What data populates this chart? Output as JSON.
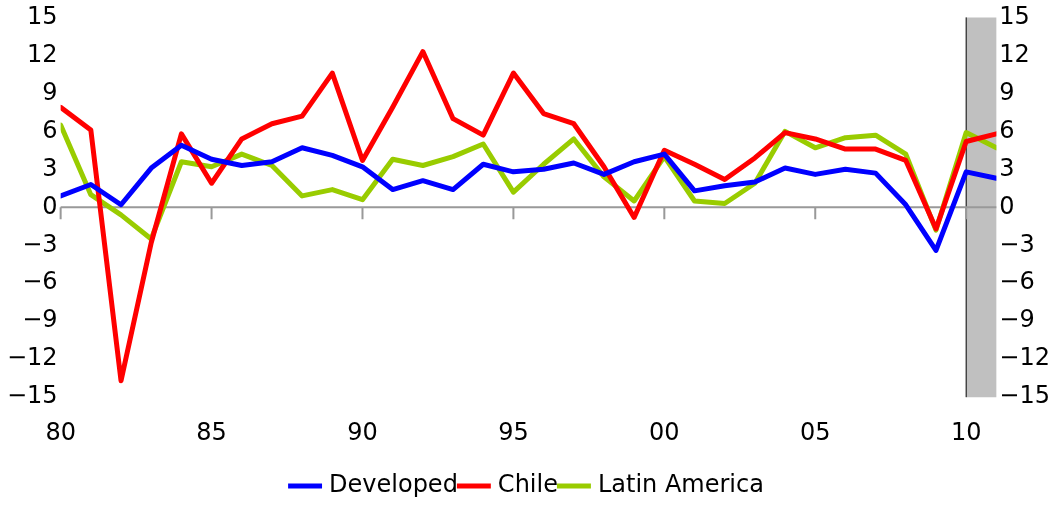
{
  "chart_data": {
    "type": "line",
    "x": [
      1980,
      1981,
      1982,
      1983,
      1984,
      1985,
      1986,
      1987,
      1988,
      1989,
      1990,
      1991,
      1992,
      1993,
      1994,
      1995,
      1996,
      1997,
      1998,
      1999,
      2000,
      2001,
      2002,
      2003,
      2004,
      2005,
      2006,
      2007,
      2008,
      2009,
      2010,
      2011
    ],
    "series": [
      {
        "name": "Developed",
        "color": "#0000ff",
        "values": [
          0.9,
          1.8,
          0.2,
          3.1,
          4.9,
          3.8,
          3.3,
          3.6,
          4.7,
          4.1,
          3.2,
          1.4,
          2.1,
          1.4,
          3.4,
          2.8,
          3.0,
          3.5,
          2.6,
          3.6,
          4.2,
          1.3,
          1.7,
          2.0,
          3.1,
          2.6,
          3.0,
          2.7,
          0.2,
          -3.4,
          2.8,
          2.3
        ]
      },
      {
        "name": "Chile",
        "color": "#ff0000",
        "values": [
          7.9,
          6.1,
          -13.7,
          -2.8,
          5.8,
          1.9,
          5.4,
          6.6,
          7.2,
          10.6,
          3.7,
          7.9,
          12.3,
          7.0,
          5.7,
          10.6,
          7.4,
          6.6,
          3.2,
          -0.8,
          4.5,
          3.4,
          2.2,
          3.9,
          5.9,
          5.4,
          4.6,
          4.6,
          3.7,
          -1.7,
          5.2,
          5.8
        ]
      },
      {
        "name": "Latin America",
        "color": "#99cc00",
        "values": [
          6.5,
          1.0,
          -0.6,
          -2.5,
          3.6,
          3.2,
          4.2,
          3.3,
          0.9,
          1.4,
          0.6,
          3.8,
          3.3,
          4.0,
          5.0,
          1.2,
          3.4,
          5.4,
          2.4,
          0.5,
          4.0,
          0.5,
          0.3,
          1.9,
          6.0,
          4.7,
          5.5,
          5.7,
          4.2,
          -1.8,
          5.9,
          4.7
        ]
      }
    ],
    "xlim": [
      1980,
      2011
    ],
    "xticks": [
      {
        "value": 1980,
        "label": "80"
      },
      {
        "value": 1985,
        "label": "85"
      },
      {
        "value": 1990,
        "label": "90"
      },
      {
        "value": 1995,
        "label": "95"
      },
      {
        "value": 2000,
        "label": "00"
      },
      {
        "value": 2005,
        "label": "05"
      },
      {
        "value": 2010,
        "label": "10"
      }
    ],
    "ylim": [
      -15,
      15
    ],
    "yticks": [
      {
        "value": -15,
        "label": "−15"
      },
      {
        "value": -12,
        "label": "−12"
      },
      {
        "value": -9,
        "label": "−9"
      },
      {
        "value": -6,
        "label": "−6"
      },
      {
        "value": -3,
        "label": "−3"
      },
      0,
      3,
      6,
      9,
      12,
      15
    ],
    "y2lim": [
      -15,
      15
    ],
    "y2ticks": [
      {
        "value": -15,
        "label": "−15"
      },
      {
        "value": -12,
        "label": "−12"
      },
      {
        "value": -9,
        "label": "−9"
      },
      {
        "value": -6,
        "label": "−6"
      },
      {
        "value": -3,
        "label": "−3"
      },
      0,
      3,
      6,
      9,
      12,
      15
    ],
    "bands": [
      {
        "axis": "x",
        "from": 2010,
        "to": 2011,
        "color": "#c0c0c0"
      }
    ],
    "legend": "bottom",
    "marker": "none",
    "line_style": "solid"
  }
}
